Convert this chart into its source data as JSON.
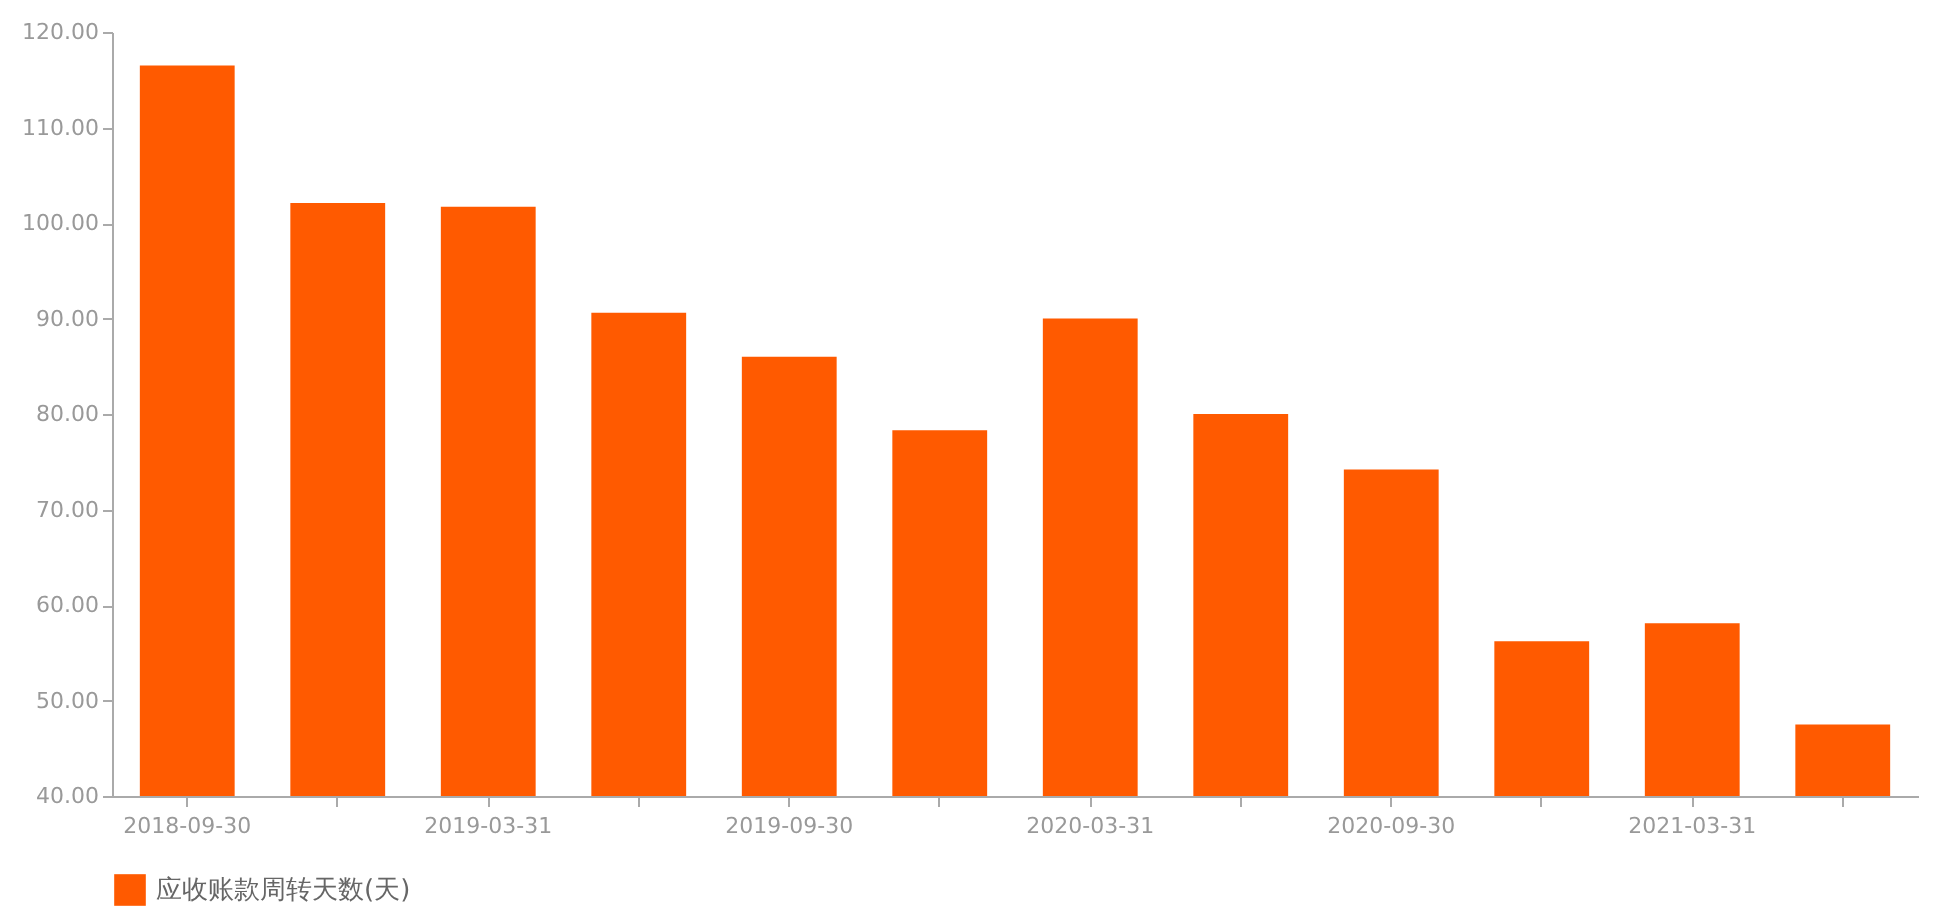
{
  "chart_data": {
    "type": "bar",
    "categories": [
      "2018-09-30",
      null,
      "2019-03-31",
      null,
      "2019-09-30",
      null,
      "2020-03-31",
      null,
      "2020-09-30",
      null,
      "2021-03-31",
      null
    ],
    "series": [
      {
        "name": "应收账款周转天数(天)",
        "color": "#ff5a00",
        "values": [
          116.5,
          102.1,
          101.7,
          90.6,
          86.0,
          78.3,
          90.0,
          80.0,
          74.2,
          56.2,
          58.1,
          47.5
        ]
      }
    ],
    "ylim": [
      40,
      120
    ],
    "yticks": [
      {
        "value": 40,
        "label": "40.00"
      },
      {
        "value": 50,
        "label": "50.00"
      },
      {
        "value": 60,
        "label": "60.00"
      },
      {
        "value": 70,
        "label": "70.00"
      },
      {
        "value": 80,
        "label": "80.00"
      },
      {
        "value": 90,
        "label": "90.00"
      },
      {
        "value": 100,
        "label": "100.00"
      },
      {
        "value": 110,
        "label": "110.00"
      },
      {
        "value": 120,
        "label": "120.00"
      }
    ],
    "grid": false,
    "legend": "bottom"
  }
}
